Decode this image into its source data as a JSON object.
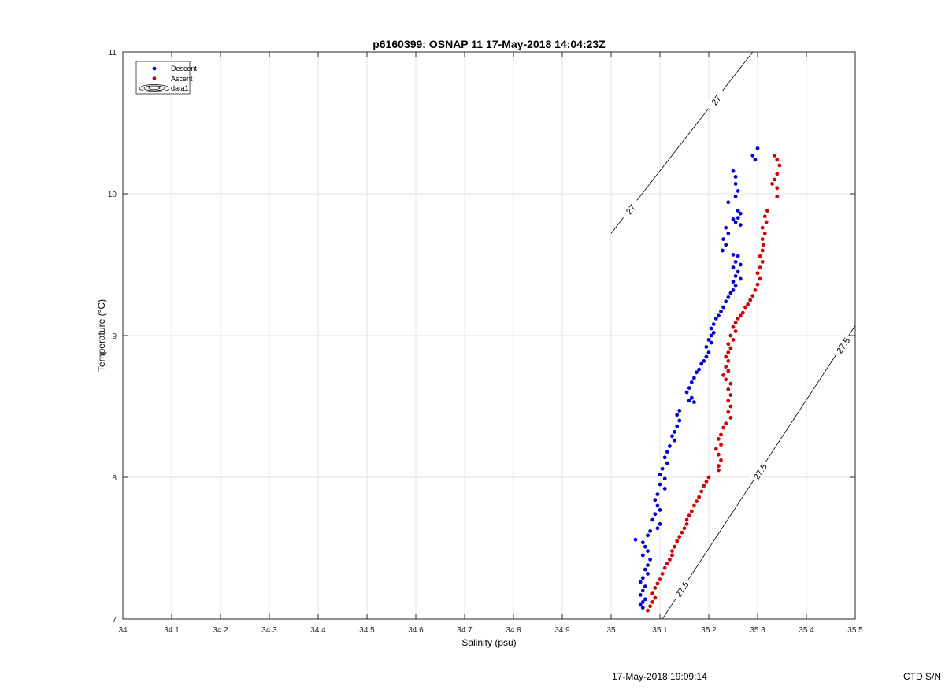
{
  "chart_data": {
    "type": "scatter",
    "title": "p6160399: OSNAP 11 17-May-2018 14:04:23Z",
    "xlabel": "Salinity (psu)",
    "ylabel": "Temperature (°C)",
    "xlim": [
      34,
      35.5
    ],
    "ylim": [
      7,
      11
    ],
    "xticks": [
      "34",
      "34.1",
      "34.2",
      "34.3",
      "34.4",
      "34.5",
      "34.6",
      "34.7",
      "34.8",
      "34.9",
      "35",
      "35.1",
      "35.2",
      "35.3",
      "35.4",
      "35.5"
    ],
    "yticks": [
      "7",
      "8",
      "9",
      "10",
      "11"
    ],
    "grid": true,
    "legend_position": "top-left",
    "legend": [
      "Descent",
      "Ascent",
      "data1"
    ],
    "series": [
      {
        "name": "Descent",
        "color": "#0000d0",
        "points": [
          [
            35.3,
            10.32
          ],
          [
            35.29,
            10.27
          ],
          [
            35.295,
            10.24
          ],
          [
            35.25,
            10.16
          ],
          [
            35.255,
            10.12
          ],
          [
            35.255,
            10.07
          ],
          [
            35.26,
            10.02
          ],
          [
            35.255,
            9.98
          ],
          [
            35.24,
            9.94
          ],
          [
            35.26,
            9.88
          ],
          [
            35.265,
            9.86
          ],
          [
            35.26,
            9.83
          ],
          [
            35.255,
            9.8
          ],
          [
            35.25,
            9.82
          ],
          [
            35.265,
            9.78
          ],
          [
            35.235,
            9.76
          ],
          [
            35.24,
            9.72
          ],
          [
            35.23,
            9.68
          ],
          [
            35.235,
            9.64
          ],
          [
            35.228,
            9.6
          ],
          [
            35.25,
            9.57
          ],
          [
            35.26,
            9.56
          ],
          [
            35.255,
            9.52
          ],
          [
            35.265,
            9.5
          ],
          [
            35.25,
            9.48
          ],
          [
            35.26,
            9.45
          ],
          [
            35.255,
            9.42
          ],
          [
            35.265,
            9.4
          ],
          [
            35.25,
            9.38
          ],
          [
            35.255,
            9.35
          ],
          [
            35.25,
            9.32
          ],
          [
            35.245,
            9.3
          ],
          [
            35.24,
            9.27
          ],
          [
            35.235,
            9.24
          ],
          [
            35.23,
            9.2
          ],
          [
            35.225,
            9.17
          ],
          [
            35.22,
            9.14
          ],
          [
            35.215,
            9.12
          ],
          [
            35.21,
            9.08
          ],
          [
            35.205,
            9.05
          ],
          [
            35.21,
            9.02
          ],
          [
            35.205,
            9.0
          ],
          [
            35.2,
            8.97
          ],
          [
            35.205,
            8.95
          ],
          [
            35.195,
            8.92
          ],
          [
            35.2,
            8.88
          ],
          [
            35.195,
            8.85
          ],
          [
            35.19,
            8.82
          ],
          [
            35.185,
            8.8
          ],
          [
            35.18,
            8.76
          ],
          [
            35.175,
            8.74
          ],
          [
            35.17,
            8.7
          ],
          [
            35.165,
            8.67
          ],
          [
            35.16,
            8.63
          ],
          [
            35.155,
            8.6
          ],
          [
            35.165,
            8.56
          ],
          [
            35.17,
            8.53
          ],
          [
            35.16,
            8.54
          ],
          [
            35.14,
            8.47
          ],
          [
            35.135,
            8.44
          ],
          [
            35.14,
            8.4
          ],
          [
            35.135,
            8.36
          ],
          [
            35.13,
            8.32
          ],
          [
            35.125,
            8.29
          ],
          [
            35.13,
            8.26
          ],
          [
            35.12,
            8.22
          ],
          [
            35.115,
            8.18
          ],
          [
            35.11,
            8.14
          ],
          [
            35.115,
            8.1
          ],
          [
            35.105,
            8.06
          ],
          [
            35.1,
            8.02
          ],
          [
            35.11,
            7.99
          ],
          [
            35.1,
            7.95
          ],
          [
            35.11,
            7.92
          ],
          [
            35.095,
            7.88
          ],
          [
            35.09,
            7.84
          ],
          [
            35.095,
            7.8
          ],
          [
            35.1,
            7.77
          ],
          [
            35.09,
            7.74
          ],
          [
            35.085,
            7.7
          ],
          [
            35.1,
            7.67
          ],
          [
            35.095,
            7.64
          ],
          [
            35.08,
            7.62
          ],
          [
            35.075,
            7.59
          ],
          [
            35.05,
            7.56
          ],
          [
            35.065,
            7.54
          ],
          [
            35.07,
            7.51
          ],
          [
            35.075,
            7.48
          ],
          [
            35.065,
            7.45
          ],
          [
            35.08,
            7.42
          ],
          [
            35.075,
            7.38
          ],
          [
            35.07,
            7.35
          ],
          [
            35.075,
            7.32
          ],
          [
            35.065,
            7.29
          ],
          [
            35.06,
            7.26
          ],
          [
            35.07,
            7.23
          ],
          [
            35.065,
            7.2
          ],
          [
            35.06,
            7.17
          ],
          [
            35.07,
            7.14
          ],
          [
            35.065,
            7.12
          ],
          [
            35.06,
            7.1
          ],
          [
            35.065,
            7.08
          ]
        ]
      },
      {
        "name": "Ascent",
        "color": "#d00000",
        "points": [
          [
            35.335,
            10.27
          ],
          [
            35.34,
            10.24
          ],
          [
            35.345,
            10.2
          ],
          [
            35.34,
            10.14
          ],
          [
            35.335,
            10.1
          ],
          [
            35.33,
            10.07
          ],
          [
            35.34,
            10.04
          ],
          [
            35.34,
            9.98
          ],
          [
            35.32,
            9.88
          ],
          [
            35.315,
            9.84
          ],
          [
            35.318,
            9.8
          ],
          [
            35.31,
            9.76
          ],
          [
            35.315,
            9.72
          ],
          [
            35.31,
            9.68
          ],
          [
            35.312,
            9.64
          ],
          [
            35.31,
            9.6
          ],
          [
            35.305,
            9.56
          ],
          [
            35.31,
            9.52
          ],
          [
            35.305,
            9.48
          ],
          [
            35.3,
            9.44
          ],
          [
            35.305,
            9.4
          ],
          [
            35.3,
            9.36
          ],
          [
            35.295,
            9.32
          ],
          [
            35.29,
            9.28
          ],
          [
            35.285,
            9.25
          ],
          [
            35.28,
            9.22
          ],
          [
            35.275,
            9.2
          ],
          [
            35.27,
            9.16
          ],
          [
            35.265,
            9.14
          ],
          [
            35.26,
            9.12
          ],
          [
            35.255,
            9.09
          ],
          [
            35.25,
            9.06
          ],
          [
            35.255,
            9.03
          ],
          [
            35.245,
            9.0
          ],
          [
            35.25,
            8.97
          ],
          [
            35.24,
            8.94
          ],
          [
            35.245,
            8.91
          ],
          [
            35.24,
            8.88
          ],
          [
            35.235,
            8.85
          ],
          [
            35.24,
            8.82
          ],
          [
            35.235,
            8.78
          ],
          [
            35.24,
            8.75
          ],
          [
            35.23,
            8.72
          ],
          [
            35.235,
            8.69
          ],
          [
            35.245,
            8.66
          ],
          [
            35.24,
            8.62
          ],
          [
            35.245,
            8.58
          ],
          [
            35.24,
            8.54
          ],
          [
            35.245,
            8.5
          ],
          [
            35.24,
            8.46
          ],
          [
            35.245,
            8.42
          ],
          [
            35.235,
            8.38
          ],
          [
            35.23,
            8.35
          ],
          [
            35.225,
            8.3
          ],
          [
            35.22,
            8.27
          ],
          [
            35.225,
            8.23
          ],
          [
            35.215,
            8.2
          ],
          [
            35.22,
            8.16
          ],
          [
            35.225,
            8.12
          ],
          [
            35.22,
            8.08
          ],
          [
            35.22,
            8.05
          ],
          [
            35.2,
            8.0
          ],
          [
            35.195,
            7.97
          ],
          [
            35.19,
            7.94
          ],
          [
            35.185,
            7.9
          ],
          [
            35.18,
            7.86
          ],
          [
            35.175,
            7.83
          ],
          [
            35.17,
            7.8
          ],
          [
            35.165,
            7.76
          ],
          [
            35.16,
            7.73
          ],
          [
            35.155,
            7.7
          ],
          [
            35.155,
            7.67
          ],
          [
            35.15,
            7.64
          ],
          [
            35.145,
            7.61
          ],
          [
            35.14,
            7.58
          ],
          [
            35.135,
            7.55
          ],
          [
            35.13,
            7.51
          ],
          [
            35.125,
            7.48
          ],
          [
            35.125,
            7.45
          ],
          [
            35.12,
            7.42
          ],
          [
            35.115,
            7.39
          ],
          [
            35.11,
            7.36
          ],
          [
            35.105,
            7.32
          ],
          [
            35.1,
            7.28
          ],
          [
            35.095,
            7.25
          ],
          [
            35.09,
            7.22
          ],
          [
            35.085,
            7.18
          ],
          [
            35.09,
            7.15
          ],
          [
            35.085,
            7.12
          ],
          [
            35.08,
            7.09
          ],
          [
            35.075,
            7.06
          ]
        ]
      }
    ],
    "contours": [
      {
        "label": "27",
        "start": [
          35.0,
          9.72
        ],
        "end": [
          35.29,
          11.0
        ],
        "label_positions": [
          [
            35.04,
            9.89
          ],
          [
            35.215,
            10.66
          ]
        ]
      },
      {
        "label": "27.5",
        "start": [
          35.105,
          7.0
        ],
        "end": [
          35.5,
          9.07
        ],
        "label_positions": [
          [
            35.145,
            7.21
          ],
          [
            35.305,
            8.04
          ],
          [
            35.475,
            8.93
          ]
        ]
      }
    ]
  },
  "footer": {
    "timestamp": "17-May-2018 19:09:14",
    "ctd": "CTD S/N"
  }
}
